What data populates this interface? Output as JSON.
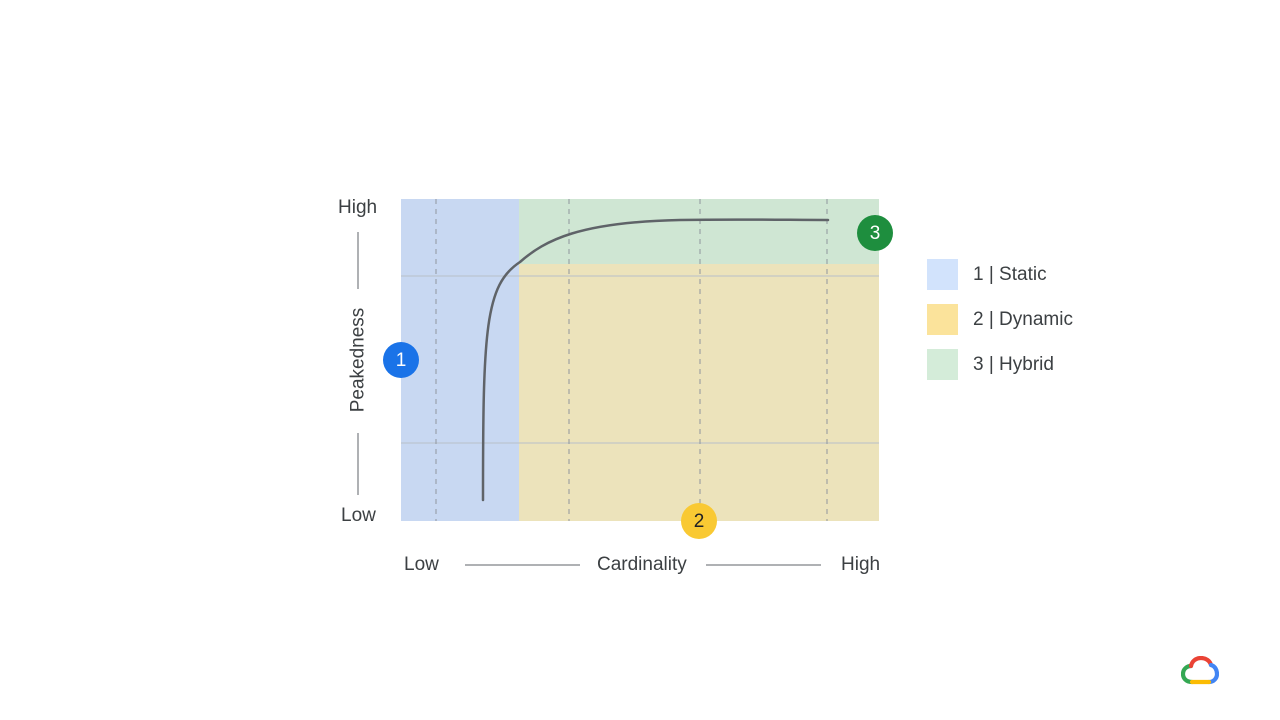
{
  "y_axis": {
    "label": "Peakedness",
    "low": "Low",
    "high": "High"
  },
  "x_axis": {
    "label": "Cardinality",
    "low": "Low",
    "high": "High"
  },
  "regions": [
    {
      "id": 1,
      "name": "Static",
      "color": "#c8d8f2"
    },
    {
      "id": 2,
      "name": "Dynamic",
      "color": "#ece3bb"
    },
    {
      "id": 3,
      "name": "Hybrid",
      "color": "#cfe6d3"
    }
  ],
  "badges": [
    {
      "text": "1",
      "color": "#1a73e8",
      "text_color": "#ffffff"
    },
    {
      "text": "2",
      "color": "#f9c933",
      "text_color": "#202124"
    },
    {
      "text": "3",
      "color": "#1e8e3e",
      "text_color": "#ffffff"
    }
  ],
  "legend": [
    {
      "label": "1 | Static",
      "color": "#d2e3fc"
    },
    {
      "label": "2 | Dynamic",
      "color": "#fbe39b"
    },
    {
      "label": "3 | Hybrid",
      "color": "#d4ecd9"
    }
  ],
  "logo": {
    "icon": "google-cloud-logo-icon"
  }
}
